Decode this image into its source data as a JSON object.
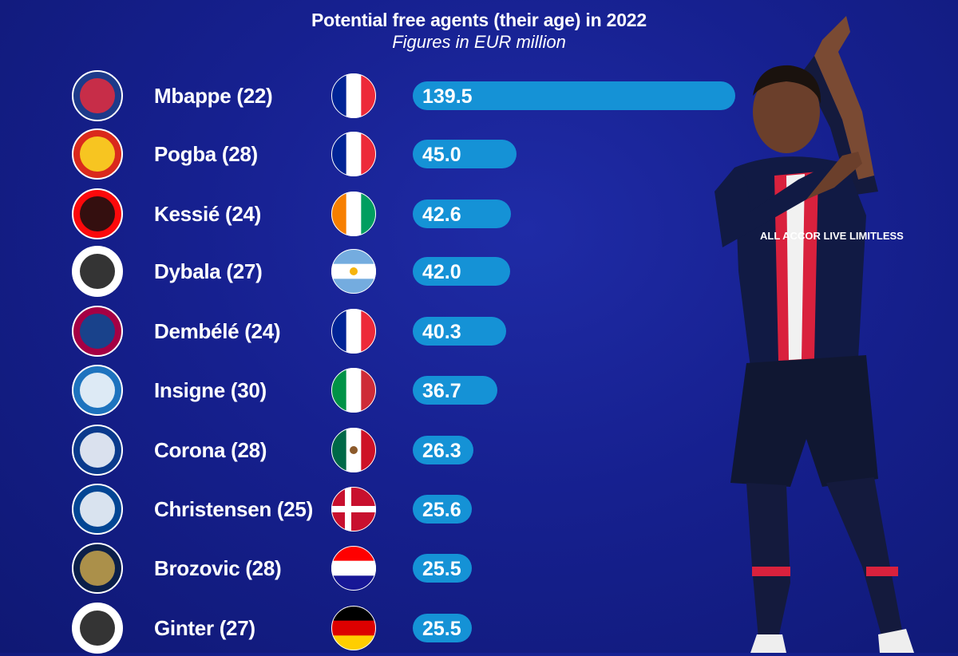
{
  "header": {
    "title": "Potential free agents (their age) in 2022",
    "subtitle": "Figures in EUR million"
  },
  "chart_data": {
    "type": "bar",
    "orientation": "horizontal",
    "title": "Potential free agents (their age) in 2022",
    "subtitle": "Figures in EUR million",
    "categories": [
      "Mbappe (22)",
      "Pogba (28)",
      "Kessié (24)",
      "Dybala (27)",
      "Dembélé (24)",
      "Insigne (30)",
      "Corona (28)",
      "Christensen (25)",
      "Brozovic (28)",
      "Ginter (27)"
    ],
    "values": [
      139.5,
      45.0,
      42.6,
      42.0,
      40.3,
      36.7,
      26.3,
      25.6,
      25.5,
      25.5
    ],
    "value_labels": [
      "139.5",
      "45.0",
      "42.6",
      "42.0",
      "40.3",
      "36.7",
      "26.3",
      "25.6",
      "25.5",
      "25.5"
    ],
    "xlim": [
      0,
      139.5
    ],
    "bar_color": "#1592d6",
    "grid": false
  },
  "rows": [
    {
      "club_icon": "psg-crest-icon",
      "flag_icon": "france-flag-icon",
      "flag": [
        "#002395",
        "#ffffff",
        "#ed2939"
      ]
    },
    {
      "club_icon": "manchester-united-crest-icon",
      "flag_icon": "france-flag-icon",
      "flag": [
        "#002395",
        "#ffffff",
        "#ed2939"
      ]
    },
    {
      "club_icon": "ac-milan-crest-icon",
      "flag_icon": "ivory-coast-flag-icon",
      "flag": [
        "#f77f00",
        "#ffffff",
        "#009e60"
      ]
    },
    {
      "club_icon": "juventus-crest-icon",
      "flag_icon": "argentina-flag-icon",
      "flag": [
        "#74acdf",
        "#ffffff",
        "#74acdf"
      ]
    },
    {
      "club_icon": "barcelona-crest-icon",
      "flag_icon": "france-flag-icon",
      "flag": [
        "#002395",
        "#ffffff",
        "#ed2939"
      ]
    },
    {
      "club_icon": "napoli-crest-icon",
      "flag_icon": "italy-flag-icon",
      "flag": [
        "#009246",
        "#ffffff",
        "#ce2b37"
      ]
    },
    {
      "club_icon": "porto-crest-icon",
      "flag_icon": "mexico-flag-icon",
      "flag": [
        "#006847",
        "#ffffff",
        "#ce1126"
      ]
    },
    {
      "club_icon": "chelsea-crest-icon",
      "flag_icon": "denmark-flag-icon",
      "flag": [
        "#c8102e",
        "#ffffff",
        "#c8102e"
      ]
    },
    {
      "club_icon": "inter-crest-icon",
      "flag_icon": "croatia-flag-icon",
      "flag": [
        "#ff0000",
        "#ffffff",
        "#171796"
      ]
    },
    {
      "club_icon": "gladbach-crest-icon",
      "flag_icon": "germany-flag-icon",
      "flag": [
        "#000000",
        "#dd0000",
        "#ffce00"
      ]
    }
  ],
  "player_figure": {
    "icon": "player-photo-icon",
    "shirt_text": "ALL ACCOR LIVE LIMITLESS"
  }
}
